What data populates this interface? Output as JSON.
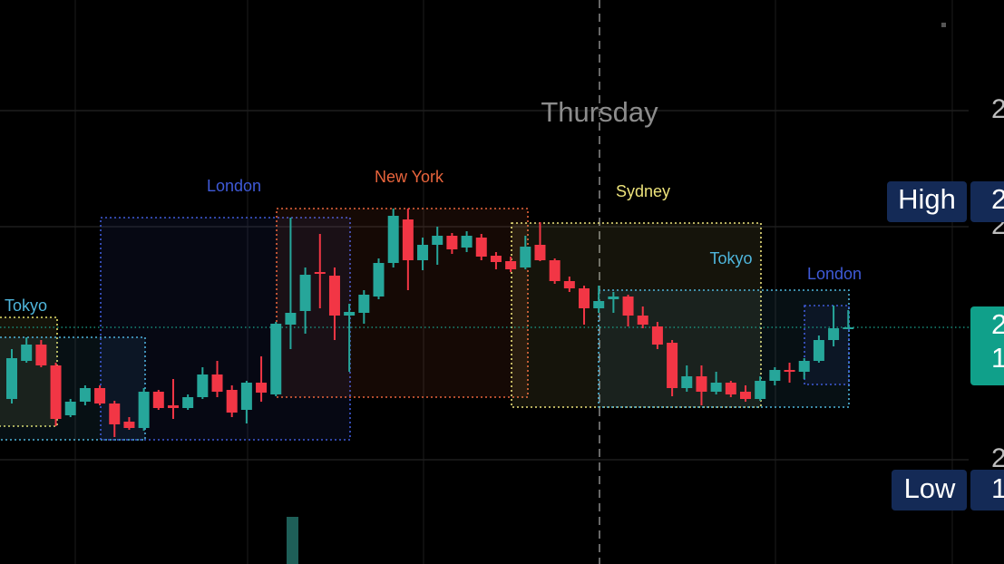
{
  "chart_data": {
    "type": "candlestick",
    "day_label": "Thursday",
    "up_color": "#26a69a",
    "down_color": "#f23645",
    "ylim": [
      13,
      635
    ],
    "yticks": [
      {
        "value": 513,
        "label": "2"
      },
      {
        "value": 385,
        "label": "2"
      },
      {
        "value": 128,
        "label": "2"
      }
    ],
    "grid": true,
    "open": [
      195,
      237,
      255,
      232,
      177,
      192,
      207,
      190,
      170,
      163,
      203,
      188,
      185,
      197,
      222,
      205,
      183,
      213,
      200,
      277,
      292,
      335,
      331,
      287,
      290,
      308,
      345,
      393,
      348,
      365,
      375,
      362,
      373,
      353,
      347,
      340,
      365,
      348,
      325,
      317,
      295,
      305,
      308,
      287,
      275,
      257,
      207,
      220,
      203,
      213,
      203,
      195,
      215,
      227,
      225,
      237,
      260,
      273
    ],
    "high": [
      250,
      263,
      260,
      235,
      195,
      210,
      210,
      193,
      175,
      207,
      205,
      217,
      200,
      230,
      237,
      210,
      215,
      242,
      280,
      395,
      340,
      377,
      340,
      300,
      315,
      350,
      405,
      405,
      373,
      385,
      378,
      380,
      377,
      357,
      352,
      375,
      390,
      350,
      330,
      320,
      320,
      313,
      310,
      297,
      280,
      260,
      232,
      232,
      225,
      215,
      210,
      220,
      230,
      235,
      240,
      265,
      298,
      293
    ],
    "low": [
      190,
      235,
      230,
      165,
      175,
      188,
      188,
      153,
      161,
      160,
      183,
      173,
      183,
      195,
      197,
      175,
      168,
      192,
      198,
      250,
      267,
      295,
      260,
      225,
      278,
      305,
      340,
      315,
      337,
      343,
      355,
      357,
      348,
      338,
      335,
      338,
      347,
      322,
      313,
      277,
      290,
      290,
      275,
      273,
      250,
      198,
      203,
      188,
      200,
      197,
      192,
      193,
      210,
      213,
      217,
      235,
      253,
      273
    ],
    "close": [
      240,
      255,
      232,
      173,
      192,
      207,
      190,
      167,
      163,
      203,
      185,
      185,
      197,
      222,
      203,
      180,
      213,
      202,
      278,
      290,
      332,
      333,
      287,
      291,
      310,
      345,
      397,
      348,
      365,
      375,
      360,
      375,
      352,
      346,
      338,
      363,
      348,
      325,
      317,
      295,
      303,
      308,
      287,
      277,
      255,
      207,
      220,
      203,
      213,
      200,
      195,
      215,
      227,
      225,
      237,
      260,
      273,
      274
    ],
    "sessions": [
      {
        "color": "#e6e06a",
        "high": 285,
        "low": 165
      },
      {
        "name": "Tokyo",
        "color": "#4fb6dc",
        "high": 263,
        "low": 150
      },
      {
        "name": "London",
        "color": "#3f5ad8",
        "high": 395,
        "low": 150
      },
      {
        "name": "New York",
        "color": "#e8643c",
        "high": 405,
        "low": 197
      },
      {
        "name": "Sydney",
        "color": "#ece27a",
        "high": 389,
        "low": 186
      },
      {
        "name": "Tokyo",
        "color": "#4fb6dc",
        "high": 315,
        "low": 186
      },
      {
        "name": "London",
        "color": "#3f5ad8",
        "high": 298,
        "low": 211
      }
    ],
    "last_price": 274,
    "last_price_labels": [
      "2",
      "1"
    ],
    "high_tag": {
      "text": "High",
      "value": "2"
    },
    "low_tag": {
      "text": "Low",
      "value": "1"
    }
  }
}
